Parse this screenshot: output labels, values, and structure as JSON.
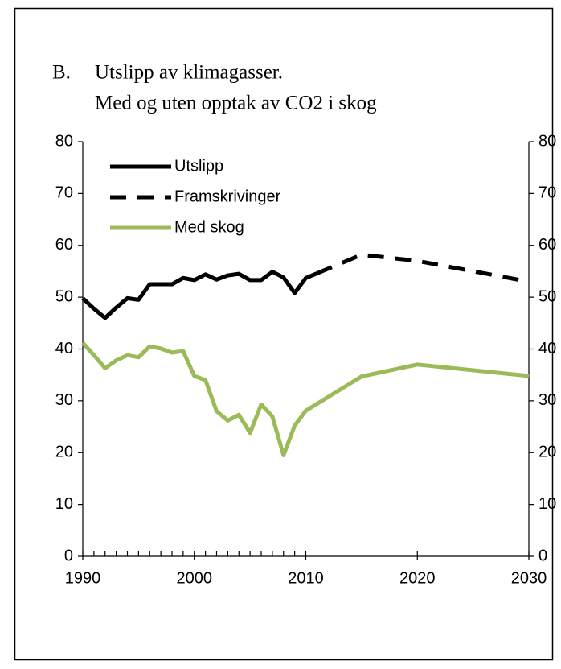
{
  "chart_data": {
    "type": "line",
    "title_label": "B.",
    "title": [
      "Utslipp av klimagasser.",
      "Med og uten opptak av CO2 i skog"
    ],
    "xlim": [
      1990,
      2030
    ],
    "xticks": [
      1990,
      2000,
      2010,
      2020,
      2030
    ],
    "xminorticks": [
      1991,
      1992,
      1993,
      1994,
      1995,
      1996,
      1997,
      1998,
      1999,
      2001,
      2002,
      2003,
      2004,
      2005,
      2006,
      2007,
      2008,
      2009
    ],
    "ylim": [
      0,
      80
    ],
    "yticks": [
      0,
      10,
      20,
      30,
      40,
      50,
      60,
      70,
      80
    ],
    "y2lim": [
      0,
      80
    ],
    "y2ticks": [
      0,
      10,
      20,
      30,
      40,
      50,
      60,
      70,
      80
    ],
    "legend": "upper left",
    "series": [
      {
        "name": "Utslipp",
        "color": "#000000",
        "dash": false,
        "x": [
          1990,
          1991,
          1992,
          1993,
          1994,
          1995,
          1996,
          1997,
          1998,
          1999,
          2000,
          2001,
          2002,
          2003,
          2004,
          2005,
          2006,
          2007,
          2008,
          2009,
          2010,
          2011
        ],
        "values": [
          49.8,
          47.8,
          46,
          48,
          49.8,
          49.5,
          52.5,
          52.5,
          52.5,
          53.7,
          53.3,
          54.4,
          53.4,
          54.2,
          54.5,
          53.3,
          53.3,
          54.9,
          53.8,
          50.8,
          53.7,
          54.6
        ]
      },
      {
        "name": "Framskrivinger",
        "color": "#000000",
        "dash": true,
        "x": [
          2011,
          2015,
          2020,
          2030
        ],
        "values": [
          54.6,
          58.2,
          57.0,
          53.0
        ]
      },
      {
        "name": "Med skog",
        "color": "#9bbb59",
        "dash": false,
        "x": [
          1990,
          1991,
          1992,
          1993,
          1994,
          1995,
          1996,
          1997,
          1998,
          1999,
          2000,
          2001,
          2002,
          2003,
          2004,
          2005,
          2006,
          2007,
          2008,
          2009,
          2010,
          2015,
          2020,
          2030
        ],
        "values": [
          41.2,
          38.8,
          36.3,
          37.8,
          38.8,
          38.4,
          40.5,
          40.1,
          39.3,
          39.6,
          34.8,
          34,
          28,
          26.2,
          27.3,
          23.8,
          29.3,
          27,
          19.5,
          25.2,
          28.1,
          34.7,
          37,
          34.8
        ]
      }
    ]
  }
}
